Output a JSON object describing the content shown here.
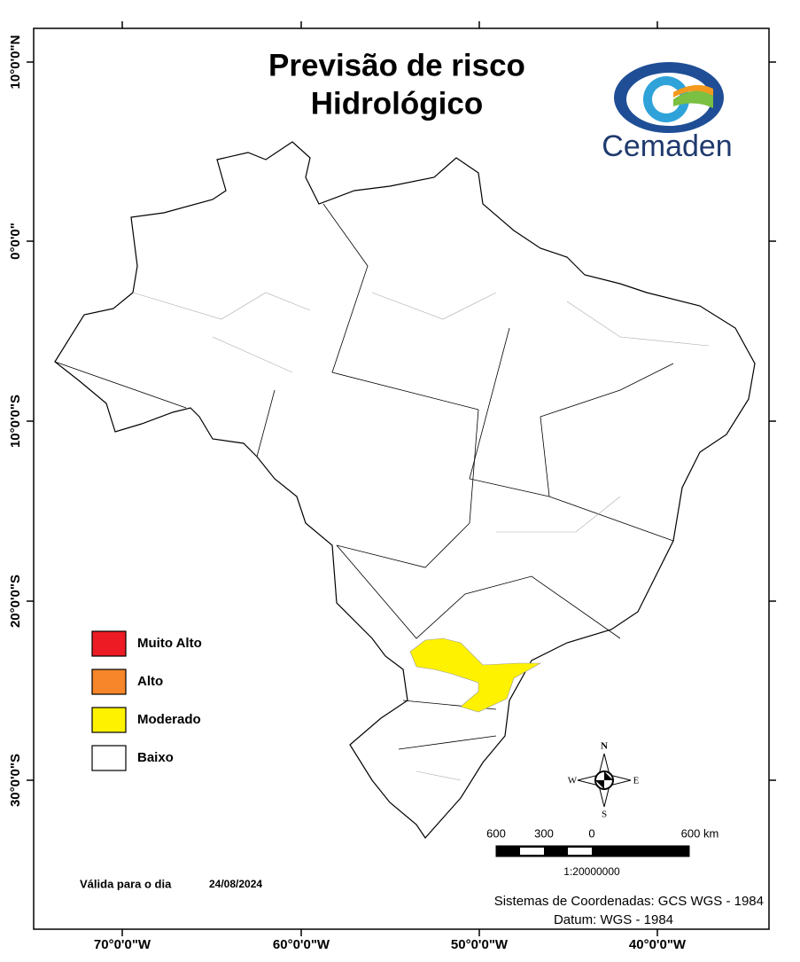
{
  "title": [
    "Previsão de risco",
    "Hidrológico"
  ],
  "logo": "Cemaden",
  "legend": [
    {
      "label": "Muito Alto",
      "color": "#ed1c24"
    },
    {
      "label": "Alto",
      "color": "#f7862a"
    },
    {
      "label": "Moderado",
      "color": "#fff200"
    },
    {
      "label": "Baixo",
      "color": "#ffffff"
    }
  ],
  "x_labels": [
    "70°0'0\"W",
    "60°0'0\"W",
    "50°0'0\"W",
    "40°0'0\"W"
  ],
  "y_labels": [
    "10°0'0\"N",
    "0°0'0\"",
    "10°0'0\"S",
    "20°0'0\"S",
    "30°0'0\"S"
  ],
  "compass": {
    "n": "N",
    "s": "S",
    "e": "E",
    "w": "W"
  },
  "scale": {
    "labels": [
      "600",
      "300",
      "0",
      "600 km"
    ],
    "ratio": "1:20000000"
  },
  "valid": {
    "label": "Válida para o dia",
    "date": "24/08/2024"
  },
  "coordinates": [
    "Sistemas de Coordenadas: GCS WGS - 1984",
    "Datum: WGS - 1984"
  ]
}
